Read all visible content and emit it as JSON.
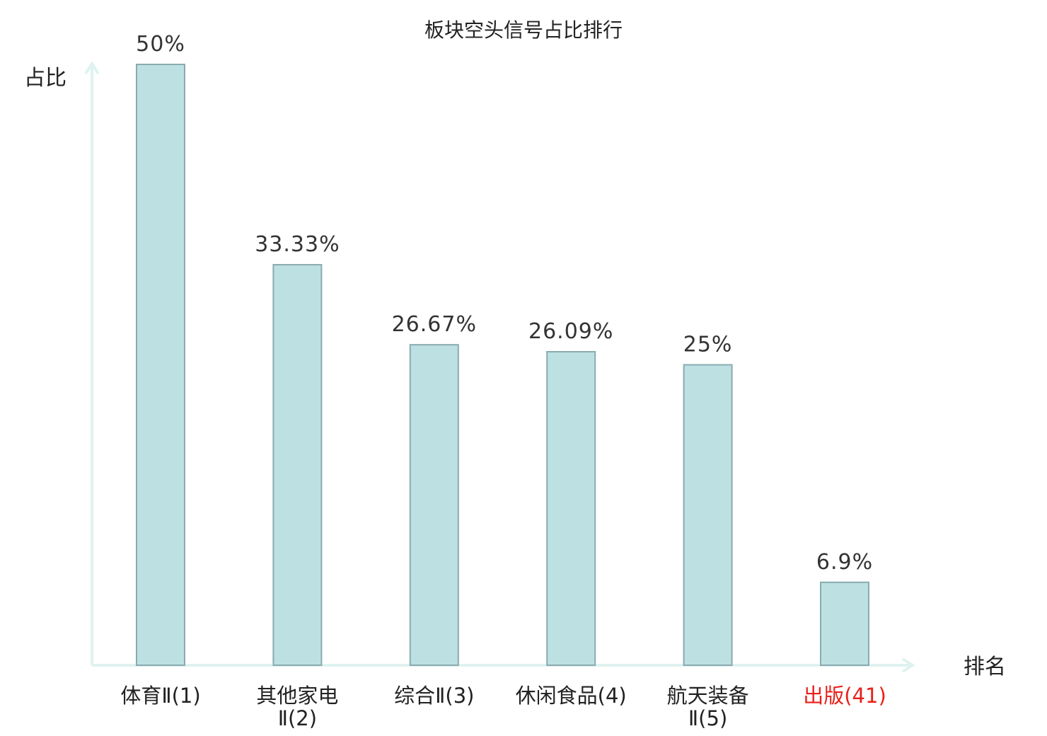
{
  "chart_data": {
    "type": "bar",
    "title": "板块空头信号占比排行",
    "ylabel": "占比",
    "xlabel": "排名",
    "ylim": [
      0,
      50
    ],
    "grid": false,
    "unit": "%",
    "categories": [
      {
        "name": "体育Ⅱ",
        "rank": "(1)",
        "lines": [
          "体育Ⅱ(1)"
        ],
        "highlight": false
      },
      {
        "name": "其他家电Ⅱ",
        "rank": "(2)",
        "lines": [
          "其他家电",
          "Ⅱ(2)"
        ],
        "highlight": false
      },
      {
        "name": "综合Ⅱ",
        "rank": "(3)",
        "lines": [
          "综合Ⅱ(3)"
        ],
        "highlight": false
      },
      {
        "name": "休闲食品",
        "rank": "(4)",
        "lines": [
          "休闲食品(4)"
        ],
        "highlight": false
      },
      {
        "name": "航天装备Ⅱ",
        "rank": "(5)",
        "lines": [
          "航天装备",
          "Ⅱ(5)"
        ],
        "highlight": false
      },
      {
        "name": "出版",
        "rank": "(41)",
        "lines": [
          "出版(41)"
        ],
        "highlight": true
      }
    ],
    "values": [
      50,
      33.33,
      26.67,
      26.09,
      25,
      6.9
    ],
    "value_labels": [
      "50%",
      "33.33%",
      "26.67%",
      "26.09%",
      "25%",
      "6.9%"
    ]
  },
  "colors": {
    "bar_fill": "#bde0e3",
    "bar_stroke": "#8aabb0",
    "axis": "#dff2ef",
    "highlight_label": "#e8201a"
  }
}
